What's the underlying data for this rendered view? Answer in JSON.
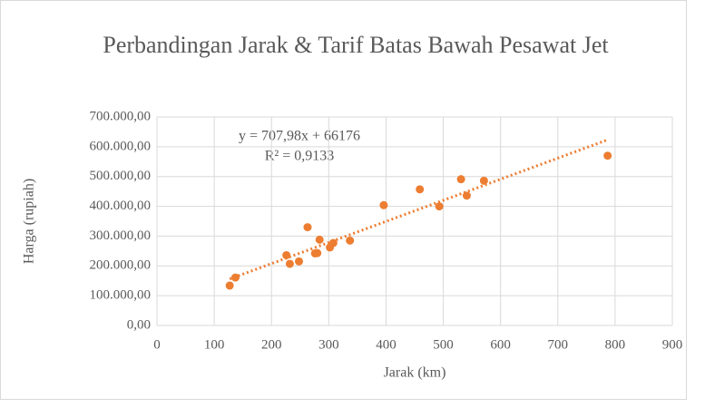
{
  "chart_data": {
    "type": "scatter",
    "title": "Perbandingan Jarak & Tarif Batas Bawah Pesawat Jet",
    "x_label": "Jarak (km)",
    "y_label": "Harga (rupiah)",
    "color": "#ed7d31",
    "x": [
      127,
      137,
      226,
      232,
      248,
      263,
      276,
      280,
      284,
      302,
      308,
      337,
      396,
      459,
      493,
      531,
      541,
      571,
      787
    ],
    "values": [
      134000,
      161000,
      236000,
      207000,
      215000,
      330000,
      242000,
      243000,
      288000,
      262000,
      277000,
      285000,
      404000,
      457000,
      400000,
      491000,
      436000,
      486000,
      570000
    ],
    "trendline": {
      "slope": 707.98,
      "intercept": 66176,
      "equation": "y = 707,98x + 66176",
      "r2_label": "R² = 0,9133"
    },
    "xlim": [
      0,
      900
    ],
    "xticks": [
      0,
      100,
      200,
      300,
      400,
      500,
      600,
      700,
      800,
      900
    ],
    "ylim": [
      0,
      700000
    ],
    "yticks": [
      {
        "value": 0,
        "label": "0,00"
      },
      {
        "value": 100000,
        "label": "100.000,00"
      },
      {
        "value": 200000,
        "label": "200.000,00"
      },
      {
        "value": 300000,
        "label": "300.000,00"
      },
      {
        "value": 400000,
        "label": "400.000,00"
      },
      {
        "value": 500000,
        "label": "500.000,00"
      },
      {
        "value": 600000,
        "label": "600.000,00"
      },
      {
        "value": 700000,
        "label": "700.000,00"
      }
    ],
    "grid": true
  }
}
